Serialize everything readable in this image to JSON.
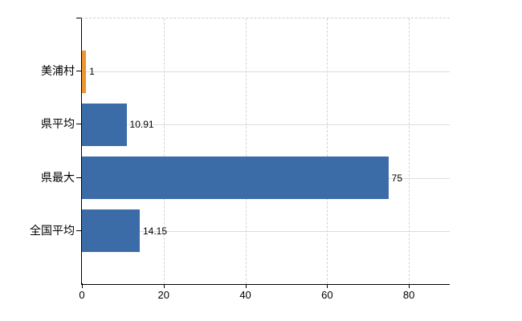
{
  "chart_data": {
    "type": "bar",
    "orientation": "horizontal",
    "title": "",
    "xlabel": "",
    "ylabel": "",
    "categories": [
      "美浦村",
      "県平均",
      "県最大",
      "全国平均"
    ],
    "values": [
      1,
      10.91,
      75,
      14.15
    ],
    "value_labels": [
      "1",
      "10.91",
      "75",
      "14.15"
    ],
    "bar_colors": [
      "#ef9331",
      "#3c6ca8",
      "#3c6ca8",
      "#3c6ca8"
    ],
    "xlim": [
      0,
      90
    ],
    "xticks": [
      0,
      20,
      40,
      60,
      80
    ],
    "xtick_labels": [
      "0",
      "20",
      "40",
      "60",
      "80"
    ],
    "grid": true,
    "legend": false,
    "colors": {
      "bar_default": "#3c6ca8",
      "bar_highlight": "#ef9331",
      "axis": "#000000",
      "horizontal_gridline": "#d9ded9",
      "vertical_gridline": "#d4d4d4",
      "plot_top_border": "#cfcfcf",
      "background": "#ffffff",
      "text": "#000000"
    }
  }
}
